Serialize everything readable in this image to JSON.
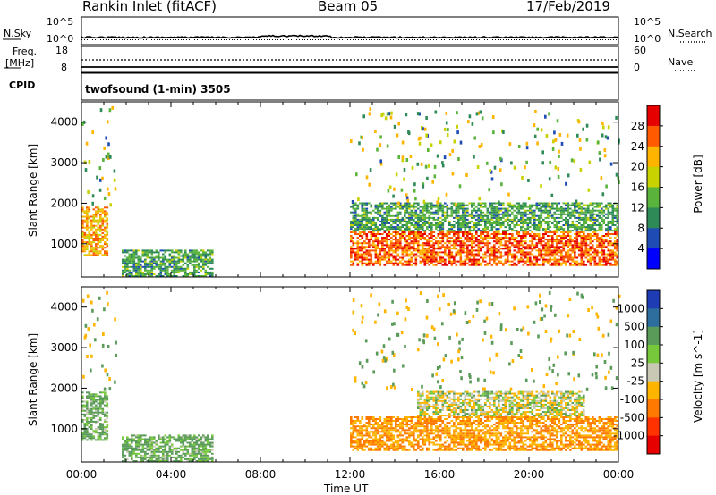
{
  "header": {
    "station": "Rankin Inlet (fitACF)",
    "beam": "Beam 05",
    "date": "17/Feb/2019"
  },
  "top_panels": {
    "nsky_label": "N.Sky",
    "nsky_ticks": [
      "10^5",
      "10^0"
    ],
    "nsearch_label": "N.Search",
    "nsearch_ticks": [
      "10^5",
      "10^0"
    ],
    "freq_label": "Freq.",
    "freq_unit": "[MHz]",
    "freq_ticks": [
      "18",
      "8"
    ],
    "nave_label": "Nave",
    "nave_ticks": [
      "60",
      "0"
    ],
    "cpid_label": "CPID",
    "cpid_text": "twofsound (1-min) 3505"
  },
  "chart_data": [
    {
      "type": "heatmap",
      "name": "power",
      "ylabel": "Slant Range [km]",
      "ylim": [
        180,
        4500
      ],
      "yticks": [
        "4000",
        "3000",
        "2000",
        "1000"
      ],
      "xticks": [
        "00:00",
        "04:00",
        "08:00",
        "12:00",
        "16:00",
        "20:00",
        "00:00"
      ],
      "xlim_hours": [
        0,
        24
      ],
      "colorbar_label": "Power [dB]",
      "colorbar_ticks": [
        "28",
        "24",
        "20",
        "16",
        "12",
        "8",
        "4"
      ],
      "colorbar_colors": [
        "#e60000",
        "#ff5a00",
        "#ffb400",
        "#c8d200",
        "#5ab43c",
        "#2e8b57",
        "#1e4bb4",
        "#0000ff"
      ],
      "regions": [
        {
          "hours": [
            0.0,
            1.2
          ],
          "km": [
            700,
            1900
          ],
          "value": 22
        },
        {
          "hours": [
            1.8,
            5.8
          ],
          "km": [
            180,
            850
          ],
          "value": 12
        },
        {
          "hours": [
            12.0,
            24.0
          ],
          "km": [
            450,
            1300
          ],
          "value": 26
        },
        {
          "hours": [
            12.0,
            24.0
          ],
          "km": [
            1300,
            2000
          ],
          "value": 12
        }
      ]
    },
    {
      "type": "heatmap",
      "name": "velocity",
      "ylabel": "Slant Range [km]",
      "ylim": [
        180,
        4500
      ],
      "yticks": [
        "4000",
        "3000",
        "2000",
        "1000"
      ],
      "xticks": [
        "00:00",
        "04:00",
        "08:00",
        "12:00",
        "16:00",
        "20:00",
        "00:00"
      ],
      "xlim_hours": [
        0,
        24
      ],
      "xlabel": "Time UT",
      "colorbar_label": "Velocity [m s^-1]",
      "colorbar_ticks": [
        "1000",
        "500",
        "100",
        "25",
        "-25",
        "-100",
        "-500",
        "-1000"
      ],
      "colorbar_colors": [
        "#1e3cb4",
        "#2e6e9e",
        "#5a9b5a",
        "#78c83c",
        "#c8c8b4",
        "#ffb400",
        "#ff7800",
        "#ff3200",
        "#e60000"
      ],
      "regions": [
        {
          "hours": [
            0.0,
            1.2
          ],
          "km": [
            700,
            1900
          ],
          "value": 100
        },
        {
          "hours": [
            1.8,
            5.8
          ],
          "km": [
            180,
            850
          ],
          "value": 100
        },
        {
          "hours": [
            12.0,
            24.0
          ],
          "km": [
            450,
            1300
          ],
          "value": -300
        },
        {
          "hours": [
            15.0,
            22.5
          ],
          "km": [
            1300,
            1900
          ],
          "value": -25
        }
      ]
    }
  ]
}
